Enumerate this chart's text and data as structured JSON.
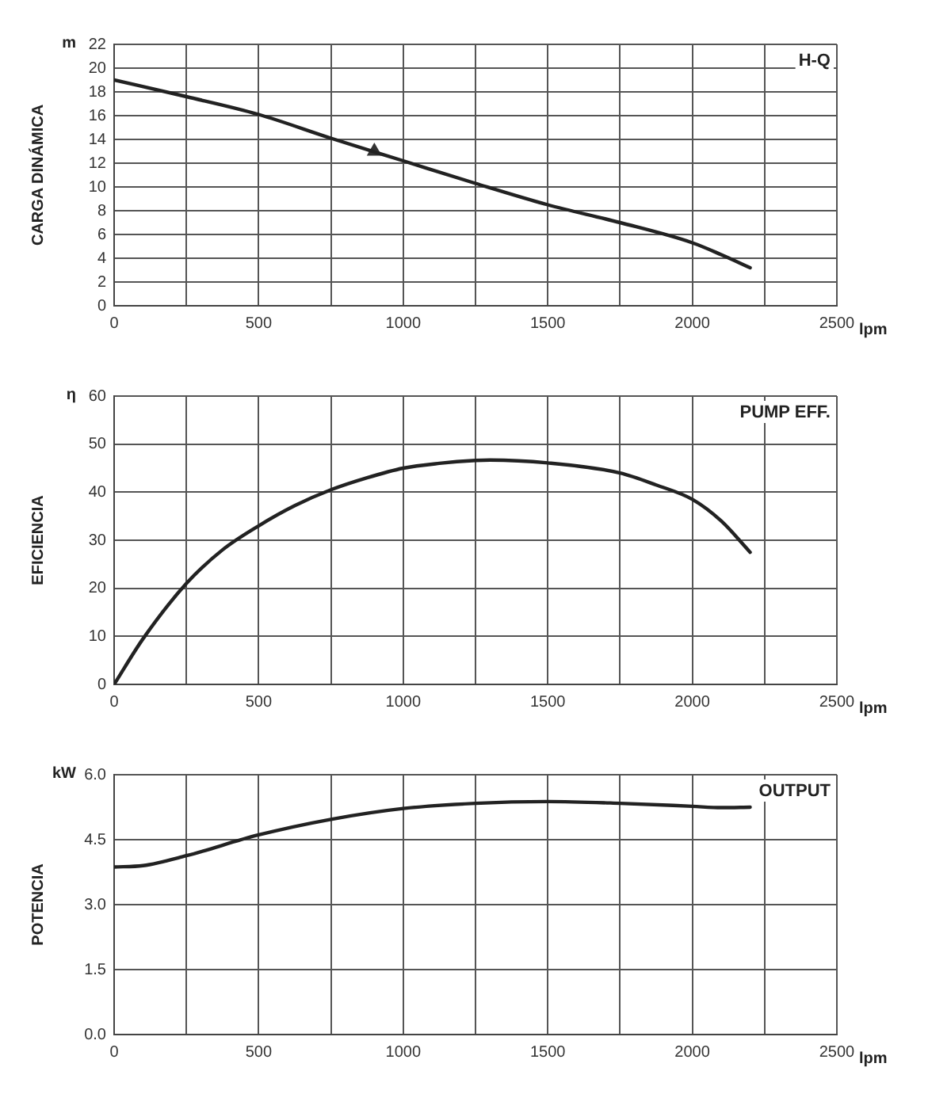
{
  "chart_data": [
    {
      "type": "line",
      "title": "H-Q",
      "ylabel": "CARGA DINÁMICA",
      "xlabel": "lpm",
      "annotations": [
        "m"
      ],
      "xlim": [
        0,
        2500
      ],
      "xticks": [
        0,
        {
          "value": 250,
          "label": null
        },
        500,
        {
          "value": 750,
          "label": null
        },
        1000,
        {
          "value": 1250,
          "label": null
        },
        1500,
        {
          "value": 1750,
          "label": null
        },
        2000,
        {
          "value": 2250,
          "label": null
        },
        2500
      ],
      "ylim": [
        0,
        22
      ],
      "yticks": [
        0,
        2,
        4,
        6,
        8,
        10,
        12,
        14,
        16,
        18,
        20,
        22
      ],
      "grid": true,
      "legend": false,
      "marker": "none",
      "series": [
        {
          "color": "#222222",
          "x": [
            0,
            250,
            500,
            750,
            1000,
            1250,
            1500,
            1750,
            2000,
            2100,
            2200
          ],
          "values": [
            19.0,
            17.6,
            16.1,
            14.1,
            12.2,
            10.3,
            8.5,
            7.0,
            5.3,
            4.3,
            3.2
          ]
        },
        {
          "type": "scatter",
          "marker": "triangle",
          "color": "#333333",
          "x": [
            900
          ],
          "values": [
            13
          ]
        }
      ]
    },
    {
      "type": "line",
      "title": "PUMP EFF.",
      "ylabel": "EFICIENCIA",
      "xlabel": "lpm",
      "annotations": [
        "η"
      ],
      "xlim": [
        0,
        2500
      ],
      "xticks": [
        0,
        {
          "value": 250,
          "label": null
        },
        500,
        {
          "value": 750,
          "label": null
        },
        1000,
        {
          "value": 1250,
          "label": null
        },
        1500,
        {
          "value": 1750,
          "label": null
        },
        2000,
        {
          "value": 2250,
          "label": null
        },
        2500
      ],
      "ylim": [
        0,
        60
      ],
      "yticks": [
        0,
        10,
        20,
        30,
        40,
        50,
        60
      ],
      "grid": true,
      "legend": false,
      "marker": "none",
      "series": [
        {
          "color": "#222222",
          "x": [
            0,
            100,
            250,
            375,
            500,
            625,
            750,
            875,
            1000,
            1125,
            1250,
            1300,
            1500,
            1750,
            1875,
            2000,
            2100,
            2200
          ],
          "values": [
            0,
            9.5,
            21,
            28,
            33,
            37.2,
            40.5,
            43,
            45,
            46,
            46.6,
            46.7,
            46.1,
            44,
            41.5,
            38.5,
            34,
            27.5
          ]
        }
      ]
    },
    {
      "type": "line",
      "title": "OUTPUT",
      "ylabel": "POTENCIA",
      "xlabel": "lpm",
      "annotations": [
        "kW"
      ],
      "xlim": [
        0,
        2500
      ],
      "xticks": [
        0,
        {
          "value": 250,
          "label": null
        },
        500,
        {
          "value": 750,
          "label": null
        },
        1000,
        {
          "value": 1250,
          "label": null
        },
        1500,
        {
          "value": 1750,
          "label": null
        },
        2000,
        {
          "value": 2250,
          "label": null
        },
        2500
      ],
      "ylim": [
        0,
        6
      ],
      "yticks": [
        {
          "value": 0,
          "label": "0.0"
        },
        1.5,
        {
          "value": 3,
          "label": "3.0"
        },
        4.5,
        {
          "value": 6,
          "label": "6.0"
        }
      ],
      "grid": true,
      "legend": false,
      "marker": "none",
      "series": [
        {
          "color": "#222222",
          "x": [
            0,
            100,
            250,
            500,
            750,
            1000,
            1250,
            1500,
            1750,
            2000,
            2100,
            2200
          ],
          "values": [
            3.87,
            3.9,
            4.13,
            4.61,
            4.97,
            5.22,
            5.34,
            5.38,
            5.34,
            5.27,
            5.24,
            5.25
          ]
        }
      ]
    }
  ]
}
